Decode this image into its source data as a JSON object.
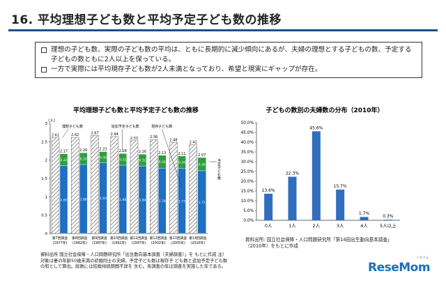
{
  "header": {
    "title": "16. 平均理想子ども数と平均予定子ども数の推移"
  },
  "bullets": [
    "理想の子ども数、実際の子ども数の平均は、ともに長期的に減少傾向にあるが、夫婦の理想とする子どもの数、予定する子どもの数ともに2人以上を保っている。",
    "一方で実際には平均現存子ども数が2人未満となっており、希望と現実にギャップが存在。"
  ],
  "footnote_left": "資料出所 国立社会保障・人口問題研究所「出生動向基本調査（夫婦調査）」を もとに作成 注）対象は妻の年齢50歳未満の初婚同士の夫婦。予定子ども数は現存子 ども数と追加予定子ども数の和として算出。総数には結婚持続期間不詳を 含む。各調査の年は調査を実施した年である。",
  "footnote_right": "資料出所: 国立社会保障・人口問題研究所「第14回出生動向基本調査」（2010年）をもとに作成",
  "logo": {
    "text": "ReseMom",
    "sub": "リセマム"
  },
  "chart_data": [
    {
      "type": "bar",
      "title": "平均理想子ども数と平均予定子ども数の推移",
      "yunit": "（人）",
      "ylim": [
        0,
        3
      ],
      "yticks": [
        0,
        0.5,
        1,
        1.5,
        2,
        2.5,
        3
      ],
      "categories": [
        "第7回調査",
        "第8回調査",
        "第9回調査",
        "第10回調査",
        "第11回調査",
        "第12回調査",
        "第13回調査",
        "第14回調査"
      ],
      "years": [
        "(1977年)",
        "(1982年)",
        "(1987年)",
        "(1992年)",
        "(1997年)",
        "(2002年)",
        "(2005年)",
        "(2010年)"
      ],
      "ideal": [
        2.61,
        2.62,
        2.67,
        2.64,
        2.53,
        2.56,
        2.48,
        2.42
      ],
      "current": [
        1.85,
        1.88,
        1.93,
        1.86,
        1.84,
        1.78,
        1.77,
        1.71
      ],
      "additional": [
        0.32,
        0.32,
        0.3,
        0.32,
        0.32,
        0.35,
        0.34,
        0.36
      ],
      "planned": [
        2.17,
        2.2,
        2.23,
        2.18,
        2.16,
        2.13,
        2.11,
        2.07
      ],
      "annotations": {
        "ideal": "理想子ども数",
        "additional": "追加予定子ども数",
        "current": "現存子ども数",
        "planned": "予定子ども数"
      },
      "colors": {
        "current": "#1f6fc2",
        "additional": "#2e9e3f",
        "ideal_hatch": "#777777"
      }
    },
    {
      "type": "bar",
      "title": "子どもの数別の夫婦数の分布（2010年）",
      "categories": [
        "0人",
        "1人",
        "2人",
        "3人",
        "4人",
        "5人以上"
      ],
      "values": [
        13.6,
        22.3,
        45.6,
        15.7,
        1.7,
        0.3
      ],
      "labels": [
        "13.6%",
        "22.3%",
        "45.6%",
        "15.7%",
        "1.7%",
        "0.3%"
      ],
      "ylim": [
        0,
        50
      ],
      "yticks": [
        "0.0%",
        "5.0%",
        "10.0%",
        "15.0%",
        "20.0%",
        "25.0%",
        "30.0%",
        "35.0%",
        "40.0%",
        "45.0%",
        "50.0%"
      ],
      "color": "#2f6fbd"
    }
  ]
}
